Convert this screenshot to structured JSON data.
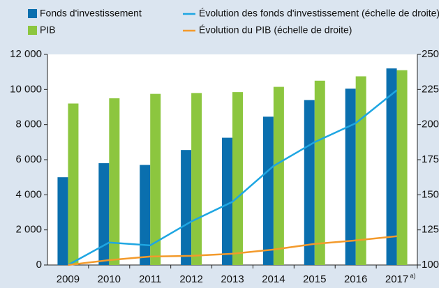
{
  "chart_data": {
    "type": "bar_line",
    "categories": [
      "2009",
      "2010",
      "2011",
      "2012",
      "2013",
      "2014",
      "2015",
      "2016",
      "2017"
    ],
    "annotations": [
      "a)"
    ],
    "series": [
      {
        "name": "Fonds d'investissement",
        "type": "bar",
        "color": "#0a6fae",
        "values": [
          5000,
          5800,
          5700,
          6550,
          7250,
          8450,
          9400,
          10050,
          11200
        ]
      },
      {
        "name": "PIB",
        "type": "bar",
        "color": "#8cc63f",
        "values": [
          9200,
          9500,
          9750,
          9800,
          9850,
          10150,
          10500,
          10750,
          11100
        ]
      },
      {
        "name": "Évolution des fonds d'investissement (échelle de droite)",
        "type": "line",
        "axis": "y2",
        "color": "#1ea6e2",
        "values": [
          100,
          116,
          114,
          131,
          145,
          170.5,
          187.5,
          201,
          224.5
        ]
      },
      {
        "name": "Évolution du PIB (échelle de droite)",
        "type": "line",
        "axis": "y2",
        "color": "#f39a2b",
        "values": [
          100,
          103.5,
          106,
          106.5,
          108,
          111,
          115,
          117.5,
          120.5
        ]
      }
    ],
    "ylim": [
      0,
      12000
    ],
    "yticks": [
      0,
      {
        "value": 2000,
        "label": "2 000"
      },
      {
        "value": 4000,
        "label": "4 000"
      },
      {
        "value": 6000,
        "label": "6 000"
      },
      {
        "value": 8000,
        "label": "8 000"
      },
      {
        "value": 10000,
        "label": "10 000"
      },
      {
        "value": 12000,
        "label": "12 000"
      }
    ],
    "y2lim": [
      100,
      250
    ],
    "y2ticks": [
      100,
      125,
      150,
      175,
      200,
      225,
      250
    ],
    "grid": false
  }
}
